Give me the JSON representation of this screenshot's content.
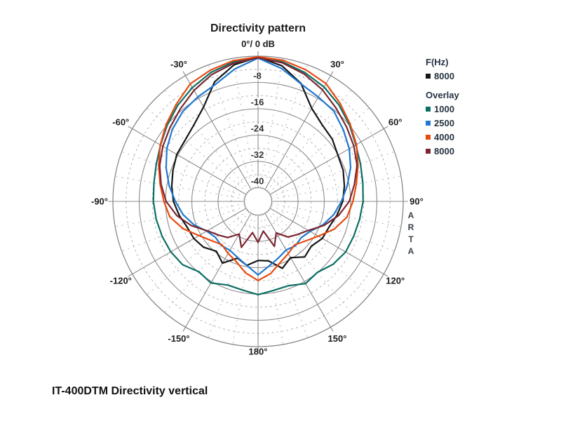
{
  "title": "Directivity pattern",
  "top_axis_label": "0°/ 0 dB",
  "watermark": "ARTA",
  "caption": "IT-400DTM Directivity vertical",
  "legend": {
    "primary_label": "F(Hz)",
    "primary": [
      {
        "label": "8000",
        "color": "#161616"
      }
    ],
    "overlay_label": "Overlay",
    "overlay": [
      {
        "label": "1000",
        "color": "#0b6e64"
      },
      {
        "label": "2500",
        "color": "#1e78cf"
      },
      {
        "label": "4000",
        "color": "#e8490f"
      },
      {
        "label": "8000",
        "color": "#7b2630"
      }
    ]
  },
  "chart_data": {
    "type": "polar-line",
    "title": "Directivity pattern",
    "angle_unit": "deg",
    "db_axis": {
      "outer_db": 0,
      "inner_db": -40,
      "labeled_rings_db": [
        -8,
        -16,
        -24,
        -32,
        -40
      ],
      "dashed_rings_db": [
        -4,
        -12,
        -20,
        -28,
        -36
      ],
      "solid_spoke_step_deg": 30,
      "dashed_spoke_step_deg": 10
    },
    "angle_labels": [
      {
        "angle": -30,
        "label": "-30°"
      },
      {
        "angle": -60,
        "label": "-60°"
      },
      {
        "angle": -90,
        "label": "-90°"
      },
      {
        "angle": -120,
        "label": "-120°"
      },
      {
        "angle": -150,
        "label": "-150°"
      },
      {
        "angle": 30,
        "label": "30°"
      },
      {
        "angle": 60,
        "label": "60°"
      },
      {
        "angle": 90,
        "label": "90°"
      },
      {
        "angle": 120,
        "label": "120°"
      },
      {
        "angle": 150,
        "label": "150°"
      },
      {
        "angle": 180,
        "label": "180°"
      }
    ],
    "db_ring_labels": [
      "-8",
      "-16",
      "-24",
      "-32",
      "-40"
    ],
    "angles": [
      -180,
      -170,
      -160,
      -150,
      -140,
      -130,
      -120,
      -110,
      -100,
      -90,
      -80,
      -70,
      -60,
      -50,
      -40,
      -30,
      -20,
      -10,
      0,
      10,
      20,
      30,
      40,
      50,
      60,
      70,
      80,
      90,
      100,
      110,
      120,
      130,
      140,
      150,
      160,
      170,
      180
    ],
    "series": [
      {
        "name": "8000",
        "group": "F(Hz)",
        "color": "#161616",
        "values": [
          -26.2,
          -24.4,
          -25.8,
          -22.5,
          -24.4,
          -22.5,
          -21.6,
          -21.2,
          -19.8,
          -18.4,
          -17.5,
          -16.6,
          -15.6,
          -15.2,
          -13.8,
          -11,
          -5.5,
          -2,
          -0.3,
          -2.3,
          -6,
          -11.5,
          -13.8,
          -14.7,
          -16.1,
          -16.6,
          -17.5,
          -18.4,
          -19.8,
          -21.2,
          -21.6,
          -23,
          -22.1,
          -24.4,
          -22.5,
          -25.8,
          -26.2
        ]
      },
      {
        "name": "1000",
        "group": "Overlay",
        "color": "#0b6e64",
        "values": [
          -15.8,
          -16.8,
          -17.1,
          -15.5,
          -16.2,
          -14.2,
          -13.5,
          -13.1,
          -12.7,
          -12.3,
          -12,
          -11.2,
          -9.9,
          -8.1,
          -6.1,
          -4.2,
          -2.4,
          -1.1,
          -0.5,
          -1.1,
          -2.5,
          -4,
          -5.9,
          -7.9,
          -9.8,
          -11,
          -11.8,
          -12.2,
          -12.8,
          -13.2,
          -13.4,
          -14.4,
          -16,
          -15.3,
          -16.9,
          -16.7,
          -15.8
        ]
      },
      {
        "name": "2500",
        "group": "Overlay",
        "color": "#1e78cf",
        "values": [
          -21.8,
          -24.4,
          -26,
          -27,
          -26.7,
          -27.2,
          -26.1,
          -23.4,
          -21,
          -19,
          -16.7,
          -14.4,
          -12.1,
          -10.1,
          -8.5,
          -7.5,
          -6.3,
          -3.3,
          -0.6,
          -3.1,
          -6.1,
          -7.5,
          -8.3,
          -10.3,
          -12.1,
          -14.2,
          -16.6,
          -18.8,
          -20.8,
          -23.2,
          -25.9,
          -27,
          -26.5,
          -27.1,
          -25.9,
          -24.3,
          -21.8
        ]
      },
      {
        "name": "4000",
        "group": "Overlay",
        "color": "#e8490f",
        "values": [
          -20.1,
          -22.1,
          -24.7,
          -25.9,
          -27,
          -25.6,
          -23.4,
          -19.9,
          -16.9,
          -15.5,
          -13.9,
          -12,
          -9.8,
          -7.7,
          -5.5,
          -2.9,
          -1.7,
          -0.7,
          -0.2,
          -0.6,
          -1.6,
          -2.8,
          -5.3,
          -7.6,
          -9.6,
          -11.8,
          -13.8,
          -15.3,
          -16.7,
          -19.5,
          -23,
          -25.4,
          -26.9,
          -25.8,
          -24.4,
          -21.9,
          -20.1
        ]
      },
      {
        "name": "8000",
        "group": "Overlay",
        "color": "#7b2630",
        "values": [
          -31.7,
          -34.5,
          -29.3,
          -32.7,
          -29.8,
          -28.3,
          -26.3,
          -22.6,
          -19.1,
          -16.2,
          -14.2,
          -12.3,
          -10.7,
          -9.2,
          -7.4,
          -5.2,
          -3.1,
          -1.5,
          -0.5,
          -1.4,
          -3,
          -5,
          -7.2,
          -9,
          -10.5,
          -12.1,
          -14.4,
          -16.4,
          -19.3,
          -22.8,
          -26.5,
          -28.5,
          -30,
          -33.1,
          -29.6,
          -35,
          -31.7
        ]
      }
    ]
  }
}
